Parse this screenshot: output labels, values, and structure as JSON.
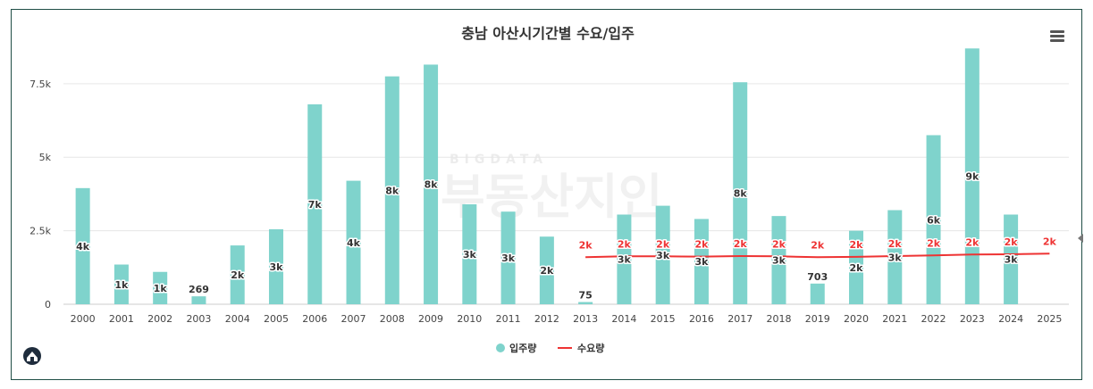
{
  "chart_data": {
    "type": "bar",
    "title": "충남 아산시기간별 수요/입주",
    "categories": [
      "2000",
      "2001",
      "2002",
      "2003",
      "2004",
      "2005",
      "2006",
      "2007",
      "2008",
      "2009",
      "2010",
      "2011",
      "2012",
      "2013",
      "2014",
      "2015",
      "2016",
      "2017",
      "2018",
      "2019",
      "2020",
      "2021",
      "2022",
      "2023",
      "2024",
      "2025"
    ],
    "y_ticks": [
      "0",
      "2.5k",
      "5k",
      "7.5k"
    ],
    "ylim": [
      0,
      8800
    ],
    "grid": true,
    "legend_position": "bottom-center",
    "series": [
      {
        "name": "입주량",
        "type": "bar",
        "color": "#7fd3cc",
        "values": [
          3950,
          1350,
          1100,
          269,
          2000,
          2550,
          6800,
          4200,
          7750,
          8150,
          3400,
          3150,
          2300,
          75,
          3050,
          3350,
          2900,
          7550,
          3000,
          703,
          2500,
          3200,
          5750,
          8700,
          3050,
          null
        ],
        "labels": [
          "4k",
          "1k",
          "1k",
          "269",
          "2k",
          "3k",
          "7k",
          "4k",
          "8k",
          "8k",
          "3k",
          "3k",
          "2k",
          "75",
          "3k",
          "3k",
          "3k",
          "8k",
          "3k",
          "703",
          "2k",
          "3k",
          "6k",
          "9k",
          "3k",
          ""
        ]
      },
      {
        "name": "수요량",
        "type": "line",
        "color": "#ee3333",
        "values": [
          null,
          null,
          null,
          null,
          null,
          null,
          null,
          null,
          null,
          null,
          null,
          null,
          null,
          1600,
          1630,
          1630,
          1620,
          1640,
          1630,
          1600,
          1610,
          1640,
          1660,
          1690,
          1700,
          1720
        ],
        "labels": [
          "",
          "",
          "",
          "",
          "",
          "",
          "",
          "",
          "",
          "",
          "",
          "",
          "",
          "2k",
          "2k",
          "2k",
          "2k",
          "2k",
          "2k",
          "2k",
          "2k",
          "2k",
          "2k",
          "2k",
          "2k",
          "2k"
        ]
      }
    ]
  },
  "watermark": {
    "small": "BIGDATA",
    "large": "부동산지인"
  },
  "icons": {
    "menu": "hamburger-menu-icon",
    "logo": "home-logo-icon"
  }
}
